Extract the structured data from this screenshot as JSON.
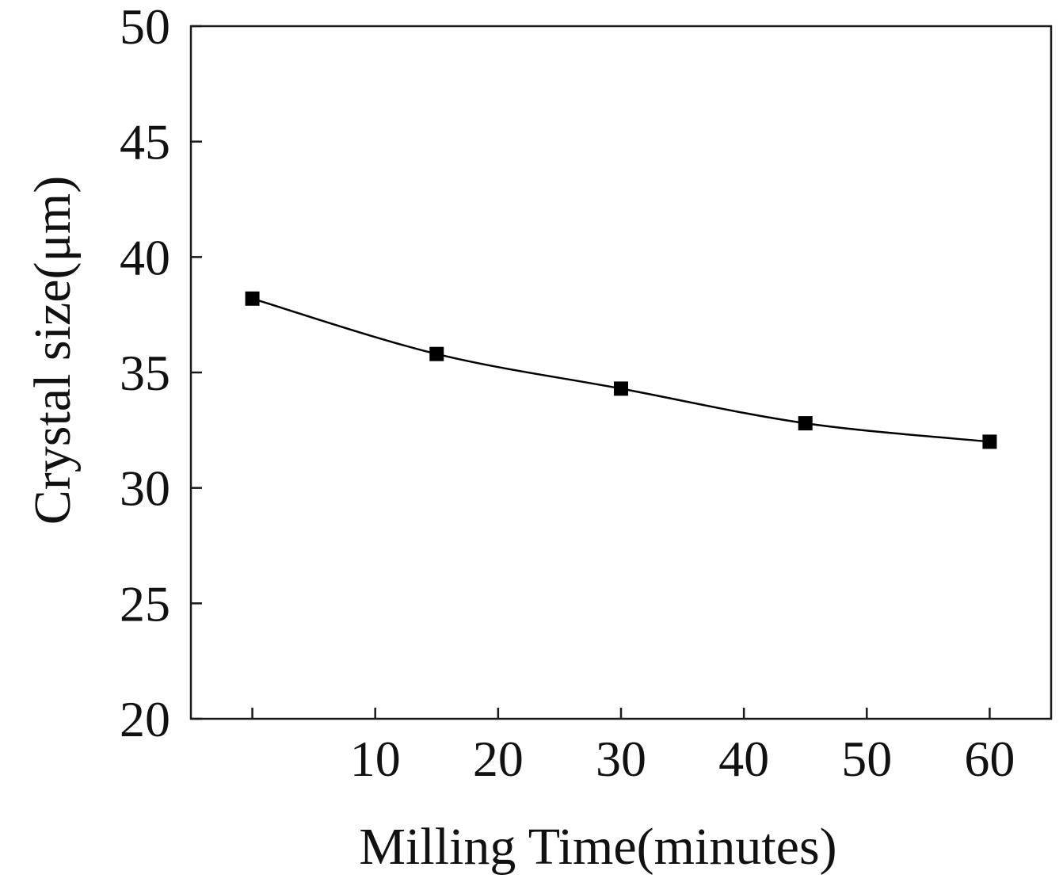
{
  "chart_data": {
    "type": "line",
    "title": "",
    "xlabel": "Milling Time(minutes)",
    "ylabel": "Crystal size(μm)",
    "xlim": [
      -5,
      65
    ],
    "ylim": [
      20,
      50
    ],
    "xticks": [
      0,
      10,
      20,
      30,
      40,
      50,
      60
    ],
    "xtick_labels": [
      "",
      "10",
      "20",
      "30",
      "40",
      "50",
      "60"
    ],
    "yticks": [
      20,
      25,
      30,
      35,
      40,
      45,
      50
    ],
    "ytick_labels": [
      "20",
      "25",
      "30",
      "35",
      "40",
      "45",
      "50"
    ],
    "grid": false,
    "legend": "none",
    "series": [
      {
        "name": "Crystal size",
        "marker": "square",
        "color": "#000000",
        "x": [
          0,
          15,
          30,
          45,
          60
        ],
        "y": [
          38.2,
          35.8,
          34.3,
          32.8,
          32.0
        ]
      }
    ]
  }
}
